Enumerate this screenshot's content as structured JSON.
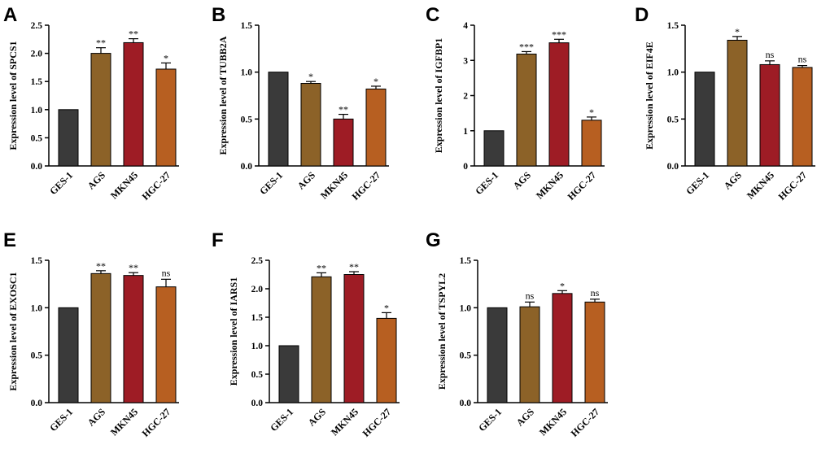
{
  "chart_data": [
    {
      "panel": "A",
      "type": "bar",
      "ylabel": "Expression level of SPCS1",
      "categories": [
        "GES-1",
        "AGS",
        "MKN45",
        "HGC-27"
      ],
      "values": [
        1.0,
        2.0,
        2.19,
        1.72
      ],
      "errors": [
        0,
        0.1,
        0.07,
        0.11
      ],
      "significance": [
        "",
        "**",
        "**",
        "*"
      ],
      "ylim": [
        0,
        2.5
      ],
      "yticks": [
        "0.0",
        "0.5",
        "1.0",
        "1.5",
        "2.0",
        "2.5"
      ],
      "colors": [
        "#3a3a3a",
        "#8c6228",
        "#9e1c25",
        "#b75f21"
      ]
    },
    {
      "panel": "B",
      "type": "bar",
      "ylabel": "Expression level of TUBB2A",
      "categories": [
        "GES-1",
        "AGS",
        "MKN45",
        "HGC-27"
      ],
      "values": [
        1.0,
        0.88,
        0.5,
        0.82
      ],
      "errors": [
        0,
        0.02,
        0.05,
        0.03
      ],
      "significance": [
        "",
        "*",
        "**",
        "*"
      ],
      "ylim": [
        0,
        1.5
      ],
      "yticks": [
        "0.0",
        "0.5",
        "1.0",
        "1.5"
      ],
      "colors": [
        "#3a3a3a",
        "#8c6228",
        "#9e1c25",
        "#b75f21"
      ]
    },
    {
      "panel": "C",
      "type": "bar",
      "ylabel": "Expression level of IGFBP1",
      "categories": [
        "GES-1",
        "AGS",
        "MKN45",
        "HGC-27"
      ],
      "values": [
        1.0,
        3.18,
        3.5,
        1.3
      ],
      "errors": [
        0,
        0.07,
        0.1,
        0.09
      ],
      "significance": [
        "",
        "***",
        "***",
        "*"
      ],
      "ylim": [
        0,
        4
      ],
      "yticks": [
        "0",
        "1",
        "2",
        "3",
        "4"
      ],
      "colors": [
        "#3a3a3a",
        "#8c6228",
        "#9e1c25",
        "#b75f21"
      ]
    },
    {
      "panel": "D",
      "type": "bar",
      "ylabel": "Expression level of EIF4E",
      "categories": [
        "GES-1",
        "AGS",
        "MKN45",
        "HGC-27"
      ],
      "values": [
        1.0,
        1.34,
        1.08,
        1.05
      ],
      "errors": [
        0,
        0.04,
        0.04,
        0.02
      ],
      "significance": [
        "",
        "*",
        "ns",
        "ns"
      ],
      "ylim": [
        0,
        1.5
      ],
      "yticks": [
        "0.0",
        "0.5",
        "1.0",
        "1.5"
      ],
      "colors": [
        "#3a3a3a",
        "#8c6228",
        "#9e1c25",
        "#b75f21"
      ]
    },
    {
      "panel": "E",
      "type": "bar",
      "ylabel": "Expression level of EXOSC1",
      "categories": [
        "GES-1",
        "AGS",
        "MKN45",
        "HGC-27"
      ],
      "values": [
        1.0,
        1.36,
        1.34,
        1.22
      ],
      "errors": [
        0,
        0.03,
        0.03,
        0.08
      ],
      "significance": [
        "",
        "**",
        "**",
        "ns"
      ],
      "ylim": [
        0,
        1.5
      ],
      "yticks": [
        "0.0",
        "0.5",
        "1.0",
        "1.5"
      ],
      "colors": [
        "#3a3a3a",
        "#8c6228",
        "#9e1c25",
        "#b75f21"
      ]
    },
    {
      "panel": "F",
      "type": "bar",
      "ylabel": "Expression level of IARS1",
      "categories": [
        "GES-1",
        "AGS",
        "MKN45",
        "HGC-27"
      ],
      "values": [
        1.0,
        2.21,
        2.25,
        1.48
      ],
      "errors": [
        0,
        0.07,
        0.05,
        0.1
      ],
      "significance": [
        "",
        "**",
        "**",
        "*"
      ],
      "ylim": [
        0,
        2.5
      ],
      "yticks": [
        "0.0",
        "0.5",
        "1.0",
        "1.5",
        "2.0",
        "2.5"
      ],
      "colors": [
        "#3a3a3a",
        "#8c6228",
        "#9e1c25",
        "#b75f21"
      ]
    },
    {
      "panel": "G",
      "type": "bar",
      "ylabel": "Expression level of TSPYL2",
      "categories": [
        "GES-1",
        "AGS",
        "MKN45",
        "HGC-27"
      ],
      "values": [
        1.0,
        1.01,
        1.15,
        1.06
      ],
      "errors": [
        0,
        0.05,
        0.03,
        0.03
      ],
      "significance": [
        "",
        "ns",
        "*",
        "ns"
      ],
      "ylim": [
        0,
        1.5
      ],
      "yticks": [
        "0.0",
        "0.5",
        "1.0",
        "1.5"
      ],
      "colors": [
        "#3a3a3a",
        "#8c6228",
        "#9e1c25",
        "#b75f21"
      ]
    }
  ]
}
